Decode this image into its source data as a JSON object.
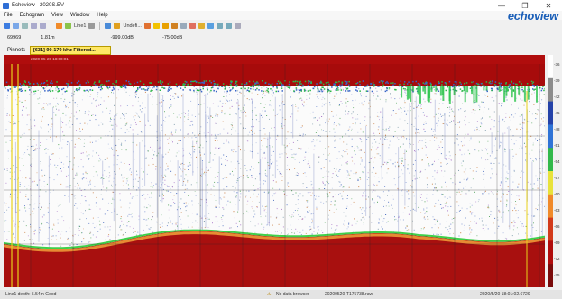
{
  "window": {
    "title": "Echoview - 2020S.EV",
    "controls": [
      "—",
      "❐",
      "✕"
    ]
  },
  "menu": [
    "File",
    "Echogram",
    "View",
    "Window",
    "Help"
  ],
  "brand": {
    "name": "echoview",
    "prefix": ""
  },
  "toolbar": {
    "line_label": "Line1",
    "undef_label": "Undefi..."
  },
  "readouts": {
    "ping": "69969",
    "depth": "1.81m",
    "sv": "-999.00dB",
    "ts": "-75.00dB"
  },
  "filter": {
    "label": "Pinnets",
    "selected": "[631] 90-170 kHz Filtered..."
  },
  "time_labels": [
    "2020-05-20 18:00:01",
    "",
    "",
    "",
    "",
    "",
    "",
    "",
    "",
    "",
    "",
    "",
    ""
  ],
  "colorscale": {
    "ticks": [
      "-36",
      "-39",
      "-42",
      "-45",
      "-48",
      "-51",
      "-54",
      "-57",
      "-60",
      "-63",
      "-66",
      "-69",
      "-72",
      "-75"
    ]
  },
  "status": {
    "left": "Line1 depth: 5.54m Good",
    "mid": "No data browser",
    "file": "20200520-T175738.raw",
    "right": "2020/5/20 18:01:02.6729"
  }
}
